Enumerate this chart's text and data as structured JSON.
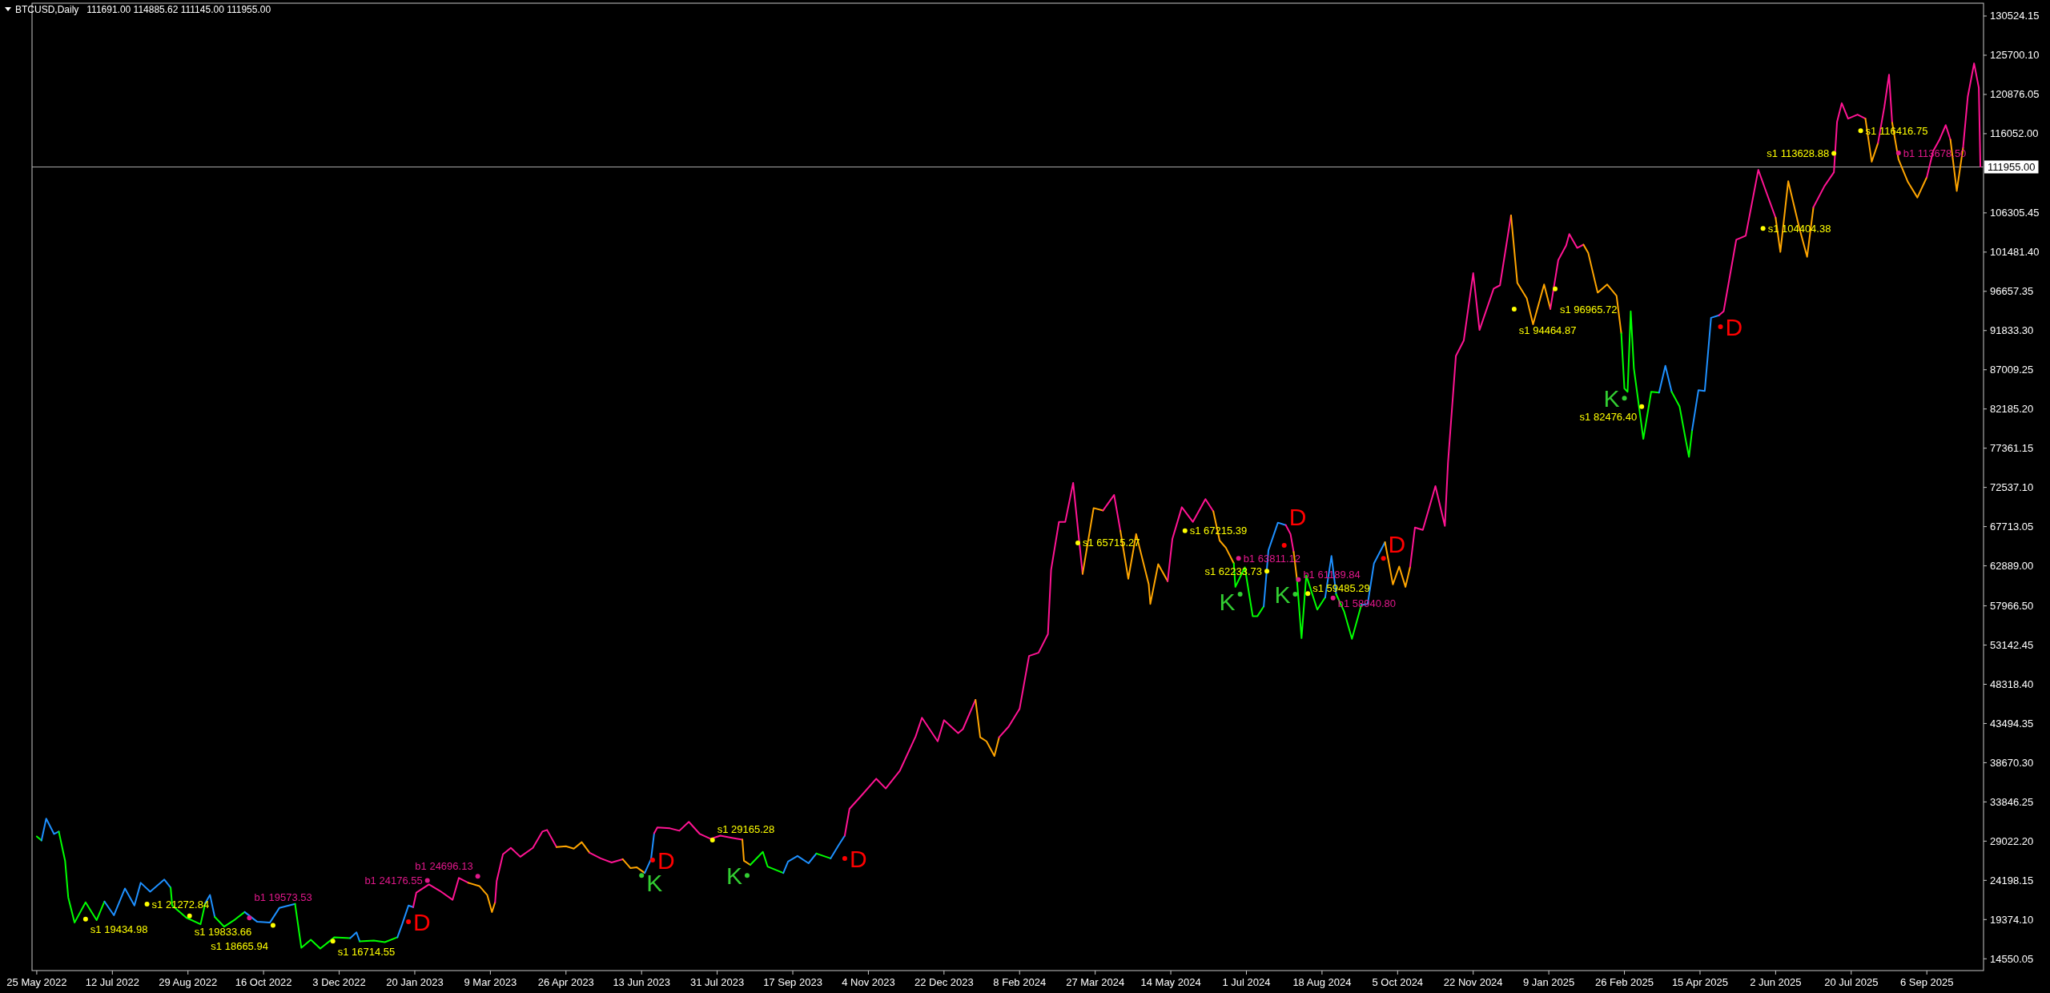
{
  "chart_data": {
    "type": "line",
    "title": "BTCUSD,Daily",
    "subtitle": "111691.00 114885.62 111145.00 111955.00",
    "xlim": [
      "2022-05-22",
      "2025-10-12"
    ],
    "xticks": [
      {
        "value": "2022-05-25",
        "label": "25 May 2022"
      },
      {
        "value": "2022-07-12",
        "label": "12 Jul 2022"
      },
      {
        "value": "2022-08-29",
        "label": "29 Aug 2022"
      },
      {
        "value": "2022-10-16",
        "label": "16 Oct 2022"
      },
      {
        "value": "2022-12-03",
        "label": "3 Dec 2022"
      },
      {
        "value": "2023-01-20",
        "label": "20 Jan 2023"
      },
      {
        "value": "2023-03-09",
        "label": "9 Mar 2023"
      },
      {
        "value": "2023-04-26",
        "label": "26 Apr 2023"
      },
      {
        "value": "2023-06-13",
        "label": "13 Jun 2023"
      },
      {
        "value": "2023-07-31",
        "label": "31 Jul 2023"
      },
      {
        "value": "2023-09-17",
        "label": "17 Sep 2023"
      },
      {
        "value": "2023-11-04",
        "label": "4 Nov 2023"
      },
      {
        "value": "2023-12-22",
        "label": "22 Dec 2023"
      },
      {
        "value": "2024-02-08",
        "label": "8 Feb 2024"
      },
      {
        "value": "2024-03-27",
        "label": "27 Mar 2024"
      },
      {
        "value": "2024-05-14",
        "label": "14 May 2024"
      },
      {
        "value": "2024-07-01",
        "label": "1 Jul 2024"
      },
      {
        "value": "2024-08-18",
        "label": "18 Aug 2024"
      },
      {
        "value": "2024-10-05",
        "label": "5 Oct 2024"
      },
      {
        "value": "2024-11-22",
        "label": "22 Nov 2024"
      },
      {
        "value": "2025-01-09",
        "label": "9 Jan 2025"
      },
      {
        "value": "2025-02-26",
        "label": "26 Feb 2025"
      },
      {
        "value": "2025-04-15",
        "label": "15 Apr 2025"
      },
      {
        "value": "2025-06-02",
        "label": "2 Jun 2025"
      },
      {
        "value": "2025-07-20",
        "label": "20 Jul 2025"
      },
      {
        "value": "2025-09-06",
        "label": "6 Sep 2025"
      }
    ],
    "ylim": [
      13100,
      132100
    ],
    "yticks": [
      {
        "value": 130524.15,
        "label": "130524.15"
      },
      {
        "value": 125700.1,
        "label": "125700.10"
      },
      {
        "value": 120876.05,
        "label": "120876.05"
      },
      {
        "value": 116052,
        "label": "116052.00"
      },
      {
        "value": 106305.45,
        "label": "106305.45"
      },
      {
        "value": 101481.4,
        "label": "101481.40"
      },
      {
        "value": 96657.35,
        "label": "96657.35"
      },
      {
        "value": 91833.3,
        "label": "91833.30"
      },
      {
        "value": 87009.25,
        "label": "87009.25"
      },
      {
        "value": 82185.2,
        "label": "82185.20"
      },
      {
        "value": 77361.15,
        "label": "77361.15"
      },
      {
        "value": 72537.1,
        "label": "72537.10"
      },
      {
        "value": 67713.05,
        "label": "67713.05"
      },
      {
        "value": 62889,
        "label": "62889.00"
      },
      {
        "value": 57966.5,
        "label": "57966.50"
      },
      {
        "value": 53142.45,
        "label": "53142.45"
      },
      {
        "value": 48318.4,
        "label": "48318.40"
      },
      {
        "value": 43494.35,
        "label": "43494.35"
      },
      {
        "value": 38670.3,
        "label": "38670.30"
      },
      {
        "value": 33846.25,
        "label": "33846.25"
      },
      {
        "value": 29022.2,
        "label": "29022.20"
      },
      {
        "value": 24198.15,
        "label": "24198.15"
      },
      {
        "value": 19374.1,
        "label": "19374.10"
      },
      {
        "value": 14550.05,
        "label": "14550.05"
      }
    ],
    "ref_lines": [
      {
        "axis": "y",
        "value": 111955,
        "label": "111955.00",
        "color": "#a8a8a8"
      }
    ],
    "series": [
      {
        "color": "#00ff00",
        "x": [
          "2022-05-25",
          "2022-05-28"
        ],
        "values": [
          29600,
          29100
        ]
      },
      {
        "color": "#1e90ff",
        "x": [
          "2022-05-28",
          "2022-05-31",
          "2022-06-05",
          "2022-06-08"
        ],
        "values": [
          29100,
          31800,
          29900,
          30200
        ]
      },
      {
        "color": "#00ff00",
        "x": [
          "2022-06-08",
          "2022-06-12",
          "2022-06-14",
          "2022-06-18",
          "2022-06-25",
          "2022-07-02",
          "2022-07-07"
        ],
        "values": [
          30200,
          26600,
          22100,
          19000,
          21500,
          19300,
          21600
        ]
      },
      {
        "color": "#1e90ff",
        "x": [
          "2022-07-07",
          "2022-07-13",
          "2022-07-20",
          "2022-07-26",
          "2022-07-30",
          "2022-08-05",
          "2022-08-14",
          "2022-08-18"
        ],
        "values": [
          21600,
          19900,
          23200,
          21100,
          23900,
          22800,
          24300,
          23300
        ]
      },
      {
        "color": "#00ff00",
        "x": [
          "2022-08-18",
          "2022-08-19",
          "2022-08-28",
          "2022-09-06",
          "2022-09-09"
        ],
        "values": [
          23300,
          21100,
          19600,
          18800,
          21400
        ]
      },
      {
        "color": "#1e90ff",
        "x": [
          "2022-09-09",
          "2022-09-12",
          "2022-09-15"
        ],
        "values": [
          21400,
          22400,
          19700
        ]
      },
      {
        "color": "#00ff00",
        "x": [
          "2022-09-15",
          "2022-09-21",
          "2022-09-28",
          "2022-10-04"
        ],
        "values": [
          19700,
          18500,
          19400,
          20300
        ]
      },
      {
        "color": "#1e90ff",
        "x": [
          "2022-10-04",
          "2022-10-12",
          "2022-10-20",
          "2022-10-26",
          "2022-11-05"
        ],
        "values": [
          20300,
          19100,
          19000,
          20800,
          21300
        ]
      },
      {
        "color": "#00ff00",
        "x": [
          "2022-11-05",
          "2022-11-09",
          "2022-11-15",
          "2022-11-21",
          "2022-11-30",
          "2022-12-10"
        ],
        "values": [
          21300,
          15900,
          16900,
          15800,
          17200,
          17100
        ]
      },
      {
        "color": "#1e90ff",
        "x": [
          "2022-12-10",
          "2022-12-14",
          "2022-12-16"
        ],
        "values": [
          17100,
          17800,
          16700
        ]
      },
      {
        "color": "#00ff00",
        "x": [
          "2022-12-16",
          "2022-12-25",
          "2023-01-01",
          "2023-01-09"
        ],
        "values": [
          16700,
          16800,
          16600,
          17200
        ]
      },
      {
        "color": "#1e90ff",
        "x": [
          "2023-01-09",
          "2023-01-12",
          "2023-01-16",
          "2023-01-19"
        ],
        "values": [
          17200,
          18800,
          21100,
          20900
        ]
      },
      {
        "color": "#ff1493",
        "x": [
          "2023-01-19",
          "2023-01-21",
          "2023-01-29",
          "2023-02-05",
          "2023-02-13",
          "2023-02-17",
          "2023-02-23"
        ],
        "values": [
          20900,
          22700,
          23700,
          22900,
          21800,
          24500,
          23900
        ]
      },
      {
        "color": "#ffa500",
        "x": [
          "2023-02-23",
          "2023-03-02",
          "2023-03-07",
          "2023-03-10",
          "2023-03-12"
        ],
        "values": [
          23900,
          23500,
          22400,
          20300,
          21500
        ]
      },
      {
        "color": "#ff1493",
        "x": [
          "2023-03-12",
          "2023-03-13",
          "2023-03-17",
          "2023-03-22",
          "2023-03-28",
          "2023-04-05",
          "2023-04-11",
          "2023-04-14",
          "2023-04-20"
        ],
        "values": [
          21500,
          24100,
          27400,
          28200,
          27100,
          28200,
          30200,
          30400,
          28300
        ]
      },
      {
        "color": "#ffa500",
        "x": [
          "2023-04-20",
          "2023-04-26",
          "2023-05-01",
          "2023-05-06",
          "2023-05-11"
        ],
        "values": [
          28300,
          28400,
          28100,
          28900,
          27600
        ]
      },
      {
        "color": "#ff1493",
        "x": [
          "2023-05-11",
          "2023-05-18",
          "2023-05-25",
          "2023-06-01"
        ],
        "values": [
          27600,
          26900,
          26400,
          26800
        ]
      },
      {
        "color": "#ffa500",
        "x": [
          "2023-06-01",
          "2023-06-06",
          "2023-06-10",
          "2023-06-15"
        ],
        "values": [
          26800,
          25700,
          25800,
          25100
        ]
      },
      {
        "color": "#1e90ff",
        "x": [
          "2023-06-15",
          "2023-06-19",
          "2023-06-21"
        ],
        "values": [
          25100,
          26800,
          30000
        ]
      },
      {
        "color": "#ff1493",
        "x": [
          "2023-06-21",
          "2023-06-23",
          "2023-07-01",
          "2023-07-07",
          "2023-07-13",
          "2023-07-20",
          "2023-07-27",
          "2023-08-02",
          "2023-08-10",
          "2023-08-16"
        ],
        "values": [
          30000,
          30700,
          30600,
          30300,
          31400,
          29900,
          29300,
          29700,
          29400,
          29200
        ]
      },
      {
        "color": "#ffa500",
        "x": [
          "2023-08-16",
          "2023-08-17",
          "2023-08-21"
        ],
        "values": [
          29200,
          26600,
          26100
        ]
      },
      {
        "color": "#00ff00",
        "x": [
          "2023-08-21",
          "2023-08-29",
          "2023-09-01",
          "2023-09-11"
        ],
        "values": [
          26100,
          27700,
          25900,
          25100
        ]
      },
      {
        "color": "#1e90ff",
        "x": [
          "2023-09-11",
          "2023-09-14",
          "2023-09-20",
          "2023-09-27",
          "2023-10-02"
        ],
        "values": [
          25100,
          26500,
          27200,
          26300,
          27500
        ]
      },
      {
        "color": "#00ff00",
        "x": [
          "2023-10-02",
          "2023-10-11"
        ],
        "values": [
          27500,
          26900
        ]
      },
      {
        "color": "#1e90ff",
        "x": [
          "2023-10-11",
          "2023-10-16",
          "2023-10-20"
        ],
        "values": [
          26900,
          28500,
          29700
        ]
      },
      {
        "color": "#ff1493",
        "x": [
          "2023-10-20",
          "2023-10-23",
          "2023-10-30",
          "2023-11-09",
          "2023-11-15",
          "2023-11-24",
          "2023-12-04",
          "2023-12-08",
          "2023-12-18",
          "2023-12-22",
          "2023-12-31",
          "2024-01-03",
          "2024-01-11"
        ],
        "values": [
          29700,
          33000,
          34500,
          36700,
          35500,
          37700,
          41900,
          44200,
          41300,
          43900,
          42300,
          42800,
          46400
        ]
      },
      {
        "color": "#ffa500",
        "x": [
          "2024-01-11",
          "2024-01-14",
          "2024-01-18",
          "2024-01-23",
          "2024-01-26"
        ],
        "values": [
          46400,
          41800,
          41300,
          39500,
          41800
        ]
      },
      {
        "color": "#ff1493",
        "x": [
          "2024-01-26",
          "2024-02-01",
          "2024-02-08",
          "2024-02-14",
          "2024-02-20",
          "2024-02-26",
          "2024-02-28",
          "2024-03-04",
          "2024-03-08",
          "2024-03-13",
          "2024-03-19"
        ],
        "values": [
          41800,
          43100,
          45300,
          51800,
          52200,
          54500,
          62400,
          68300,
          68300,
          73100,
          61900
        ]
      },
      {
        "color": "#ffa500",
        "x": [
          "2024-03-19",
          "2024-03-26",
          "2024-04-01"
        ],
        "values": [
          61900,
          70000,
          69700
        ]
      },
      {
        "color": "#ff1493",
        "x": [
          "2024-04-01",
          "2024-04-08",
          "2024-04-12"
        ],
        "values": [
          69700,
          71600,
          67200
        ]
      },
      {
        "color": "#ffa500",
        "x": [
          "2024-04-12",
          "2024-04-17",
          "2024-04-22",
          "2024-04-30",
          "2024-05-01",
          "2024-05-06",
          "2024-05-12"
        ],
        "values": [
          67200,
          61300,
          66800,
          60600,
          58200,
          63100,
          61000
        ]
      },
      {
        "color": "#ff1493",
        "x": [
          "2024-05-12",
          "2024-05-15",
          "2024-05-21",
          "2024-05-28",
          "2024-06-05",
          "2024-06-10"
        ],
        "values": [
          61000,
          66200,
          70100,
          68300,
          71100,
          69600
        ]
      },
      {
        "color": "#ffa500",
        "x": [
          "2024-06-10",
          "2024-06-14",
          "2024-06-18",
          "2024-06-23"
        ],
        "values": [
          69600,
          66000,
          65100,
          63200
        ]
      },
      {
        "color": "#00ff00",
        "x": [
          "2024-06-23",
          "2024-06-24",
          "2024-06-30",
          "2024-07-05",
          "2024-07-08",
          "2024-07-12"
        ],
        "values": [
          63200,
          60300,
          62700,
          56700,
          56700,
          57900
        ]
      },
      {
        "color": "#1e90ff",
        "x": [
          "2024-07-12",
          "2024-07-15",
          "2024-07-21",
          "2024-07-26"
        ],
        "values": [
          57900,
          64800,
          68200,
          67900
        ]
      },
      {
        "color": "#ff1493",
        "x": [
          "2024-07-26",
          "2024-07-29",
          "2024-07-31"
        ],
        "values": [
          67900,
          66800,
          64600
        ]
      },
      {
        "color": "#ffa500",
        "x": [
          "2024-07-31",
          "2024-08-02"
        ],
        "values": [
          64600,
          61400
        ]
      },
      {
        "color": "#00ff00",
        "x": [
          "2024-08-02",
          "2024-08-05",
          "2024-08-08",
          "2024-08-15",
          "2024-08-20"
        ],
        "values": [
          61400,
          54000,
          61700,
          57500,
          59000
        ]
      },
      {
        "color": "#1e90ff",
        "x": [
          "2024-08-20",
          "2024-08-24",
          "2024-08-27"
        ],
        "values": [
          59000,
          64100,
          59400
        ]
      },
      {
        "color": "#00ff00",
        "x": [
          "2024-08-27",
          "2024-09-01",
          "2024-09-06",
          "2024-09-12"
        ],
        "values": [
          59400,
          57300,
          53900,
          58100
        ]
      },
      {
        "color": "#1e90ff",
        "x": [
          "2024-09-12",
          "2024-09-16",
          "2024-09-20",
          "2024-09-27"
        ],
        "values": [
          58100,
          58200,
          63200,
          65800
        ]
      },
      {
        "color": "#ffa500",
        "x": [
          "2024-09-27",
          "2024-10-02",
          "2024-10-06",
          "2024-10-10",
          "2024-10-13"
        ],
        "values": [
          65800,
          60600,
          62800,
          60300,
          62800
        ]
      },
      {
        "color": "#ff1493",
        "x": [
          "2024-10-13",
          "2024-10-16",
          "2024-10-21",
          "2024-10-29",
          "2024-11-04",
          "2024-11-06",
          "2024-11-11",
          "2024-11-16",
          "2024-11-22",
          "2024-11-26",
          "2024-12-05",
          "2024-12-09",
          "2024-12-16"
        ],
        "values": [
          62800,
          67600,
          67300,
          72700,
          67800,
          75600,
          88700,
          90600,
          98900,
          91900,
          97000,
          97400,
          106000
        ]
      },
      {
        "color": "#ffa500",
        "x": [
          "2024-12-16",
          "2024-12-20",
          "2024-12-26",
          "2024-12-30",
          "2025-01-06",
          "2025-01-10"
        ],
        "values": [
          106000,
          97700,
          95800,
          92600,
          97500,
          94500
        ]
      },
      {
        "color": "#ff1493",
        "x": [
          "2025-01-10",
          "2025-01-15",
          "2025-01-20",
          "2025-01-22",
          "2025-01-27",
          "2025-01-31"
        ],
        "values": [
          94500,
          100500,
          102300,
          103700,
          102000,
          102400
        ]
      },
      {
        "color": "#ffa500",
        "x": [
          "2025-01-31",
          "2025-02-03",
          "2025-02-09",
          "2025-02-15",
          "2025-02-21",
          "2025-02-24"
        ],
        "values": [
          102400,
          101400,
          96500,
          97500,
          96100,
          91500
        ]
      },
      {
        "color": "#00ff00",
        "x": [
          "2025-02-24",
          "2025-02-26",
          "2025-02-28",
          "2025-03-02",
          "2025-03-04",
          "2025-03-10",
          "2025-03-15",
          "2025-03-20"
        ],
        "values": [
          91500,
          84700,
          84300,
          94200,
          87200,
          78500,
          84300,
          84200
        ]
      },
      {
        "color": "#1e90ff",
        "x": [
          "2025-03-20",
          "2025-03-24",
          "2025-03-28"
        ],
        "values": [
          84200,
          87500,
          84300
        ]
      },
      {
        "color": "#00ff00",
        "x": [
          "2025-03-28",
          "2025-04-02",
          "2025-04-06",
          "2025-04-08",
          "2025-04-10"
        ],
        "values": [
          84300,
          82500,
          78300,
          76300,
          79600
        ]
      },
      {
        "color": "#1e90ff",
        "x": [
          "2025-04-10",
          "2025-04-14",
          "2025-04-18",
          "2025-04-22",
          "2025-04-27"
        ],
        "values": [
          79600,
          84500,
          84400,
          93400,
          93700
        ]
      },
      {
        "color": "#ff1493",
        "x": [
          "2025-04-27",
          "2025-04-30",
          "2025-05-08",
          "2025-05-14",
          "2025-05-22",
          "2025-05-27",
          "2025-06-02"
        ],
        "values": [
          93700,
          94200,
          103000,
          103500,
          111600,
          108900,
          105700
        ]
      },
      {
        "color": "#ffa500",
        "x": [
          "2025-06-02",
          "2025-06-05",
          "2025-06-10",
          "2025-06-17",
          "2025-06-22",
          "2025-06-26"
        ],
        "values": [
          105700,
          101500,
          110200,
          104500,
          100900,
          107000
        ]
      },
      {
        "color": "#ff1493",
        "x": [
          "2025-06-26",
          "2025-07-03",
          "2025-07-09",
          "2025-07-11",
          "2025-07-14",
          "2025-07-18",
          "2025-07-24",
          "2025-07-29"
        ],
        "values": [
          107000,
          109600,
          111300,
          117500,
          119800,
          117900,
          118400,
          117900
        ]
      },
      {
        "color": "#ffa500",
        "x": [
          "2025-07-29",
          "2025-08-02",
          "2025-08-06"
        ],
        "values": [
          117900,
          112600,
          114900
        ]
      },
      {
        "color": "#ff1493",
        "x": [
          "2025-08-06",
          "2025-08-10",
          "2025-08-13",
          "2025-08-15"
        ],
        "values": [
          114900,
          119300,
          123300,
          117400
        ]
      },
      {
        "color": "#ffa500",
        "x": [
          "2025-08-15",
          "2025-08-19",
          "2025-08-25",
          "2025-08-31",
          "2025-09-06"
        ],
        "values": [
          117400,
          112900,
          110100,
          108200,
          110700
        ]
      },
      {
        "color": "#ff1493",
        "x": [
          "2025-09-06",
          "2025-09-10",
          "2025-09-14",
          "2025-09-18",
          "2025-09-21"
        ],
        "values": [
          110700,
          113900,
          115300,
          117100,
          115300
        ]
      },
      {
        "color": "#ffa500",
        "x": [
          "2025-09-21",
          "2025-09-25",
          "2025-09-29"
        ],
        "values": [
          115300,
          109000,
          114300
        ]
      },
      {
        "color": "#ff1493",
        "x": [
          "2025-09-29",
          "2025-10-02",
          "2025-10-06",
          "2025-10-09",
          "2025-10-10"
        ],
        "values": [
          114300,
          120600,
          124700,
          121700,
          112000
        ]
      },
      {
        "type": "scatter",
        "marker": "circle",
        "color": "#ff0000",
        "x": [
          "2023-01-16",
          "2023-06-20",
          "2023-10-20",
          "2024-07-25",
          "2024-09-26",
          "2025-04-28"
        ],
        "values": [
          19100,
          26700,
          26900,
          65400,
          63800,
          92300
        ],
        "value_labels": [
          "D",
          "D",
          "D",
          "D",
          "D",
          "D"
        ]
      },
      {
        "type": "scatter",
        "marker": "circle",
        "color": "#32cd32",
        "x": [
          "2023-06-13",
          "2023-08-19",
          "2024-06-27",
          "2024-08-01",
          "2025-02-26"
        ],
        "values": [
          24800,
          24800,
          59400,
          59400,
          83500
        ],
        "value_labels": [
          "K",
          "K",
          "K",
          "K",
          "K"
        ]
      },
      {
        "type": "scatter",
        "marker": "circle",
        "color": "#ffff00",
        "x": [
          "2022-06-25",
          "2022-08-03",
          "2022-08-30",
          "2022-10-22",
          "2022-11-29",
          "2023-07-28",
          "2024-03-16",
          "2024-05-23",
          "2024-07-14",
          "2024-08-09",
          "2024-12-18",
          "2025-01-13",
          "2025-03-09",
          "2025-05-25",
          "2025-07-09",
          "2025-07-26"
        ],
        "values": [
          19434.98,
          21272.84,
          19833.66,
          18665.94,
          16714.55,
          29165.28,
          65715.27,
          67215.39,
          62233.73,
          59485.29,
          94464.87,
          96965.72,
          82476.4,
          104404.38,
          113628.88,
          116416.75
        ],
        "value_labels": [
          "s1 19434.98",
          "s1 21272.84",
          "s1 19833.66",
          "s1 18665.94",
          "s1 16714.55",
          "s1 29165.28",
          "s1 65715.27",
          "s1 67215.39",
          "s1 62233.73",
          "s1 59485.29",
          "s1 94464.87",
          "s1 96965.72",
          "s1 82476.40",
          "s1 104404.38",
          "s1 113628.88",
          "s1 116416.75"
        ]
      },
      {
        "type": "scatter",
        "marker": "circle",
        "color": "#e0188a",
        "x": [
          "2022-10-07",
          "2023-01-28",
          "2023-03-01",
          "2024-06-26",
          "2024-08-03",
          "2024-08-25",
          "2025-08-19"
        ],
        "values": [
          19573.53,
          24176.55,
          24696.13,
          63811.12,
          61189.84,
          58940.8,
          113678.5
        ],
        "value_labels": [
          "b1 19573.53",
          "b1 24176.55",
          "b1 24696.13",
          "b1 63811.12",
          "b1 61189.84",
          "b1 58940.80",
          "b1 113678.50"
        ]
      }
    ]
  }
}
